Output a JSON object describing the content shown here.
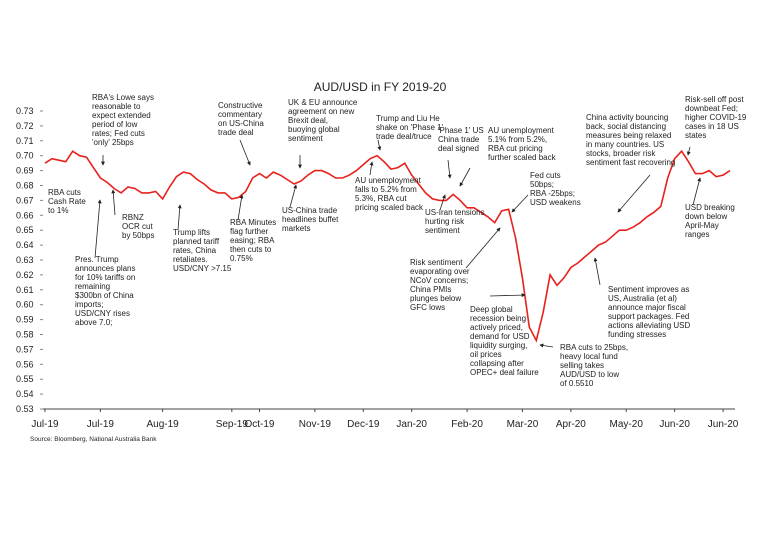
{
  "chart_data": {
    "type": "line",
    "title": "AUD/USD in FY 2019-20",
    "source": "Source: Bloomberg, National Australia Bank",
    "categories": [
      "Jul-19",
      null,
      null,
      null,
      null,
      null,
      null,
      null,
      "Jul-19",
      null,
      null,
      null,
      null,
      null,
      null,
      null,
      null,
      "Aug-19",
      null,
      null,
      null,
      null,
      null,
      null,
      null,
      null,
      null,
      "Sep-19",
      null,
      null,
      null,
      "Oct-19",
      null,
      null,
      null,
      null,
      null,
      null,
      null,
      "Nov-19",
      null,
      null,
      null,
      null,
      null,
      null,
      "Dec-19",
      null,
      null,
      null,
      null,
      null,
      null,
      "Jan-20",
      null,
      null,
      null,
      null,
      null,
      null,
      null,
      "Feb-20",
      null,
      null,
      null,
      null,
      null,
      null,
      null,
      "Mar-20",
      null,
      null,
      null,
      null,
      null,
      null,
      "Apr-20",
      null,
      null,
      null,
      null,
      null,
      null,
      null,
      "May-20",
      null,
      null,
      null,
      null,
      null,
      null,
      "Jun-20",
      null,
      null,
      null,
      null,
      null,
      null,
      "Jun-20",
      null
    ],
    "series": [
      {
        "name": "AUD/USD",
        "color": "#e8211d",
        "values": [
          0.695,
          0.698,
          0.697,
          0.696,
          0.703,
          0.7,
          0.699,
          0.692,
          0.685,
          0.682,
          0.678,
          0.675,
          0.679,
          0.678,
          0.675,
          0.675,
          0.676,
          0.671,
          0.679,
          0.686,
          0.689,
          0.688,
          0.684,
          0.681,
          0.677,
          0.675,
          0.675,
          0.671,
          0.672,
          0.676,
          0.685,
          0.688,
          0.685,
          0.689,
          0.687,
          0.684,
          0.681,
          0.683,
          0.687,
          0.69,
          0.69,
          0.688,
          0.685,
          0.685,
          0.687,
          0.69,
          0.694,
          0.698,
          0.7,
          0.696,
          0.691,
          0.692,
          0.695,
          0.687,
          0.681,
          0.675,
          0.671,
          0.67,
          0.67,
          0.674,
          0.67,
          0.665,
          0.665,
          0.662,
          0.659,
          0.655,
          0.663,
          0.664,
          0.645,
          0.618,
          0.585,
          0.576,
          0.595,
          0.62,
          0.613,
          0.618,
          0.625,
          0.628,
          0.632,
          0.636,
          0.64,
          0.642,
          0.646,
          0.65,
          0.65,
          0.652,
          0.655,
          0.659,
          0.662,
          0.666,
          0.685,
          0.698,
          0.703,
          0.696,
          0.688,
          0.688,
          0.69,
          0.686,
          0.687,
          0.69
        ]
      }
    ],
    "ylim": [
      0.53,
      0.73
    ],
    "yticks": [
      0.73,
      0.72,
      0.71,
      {
        "value": 0.7,
        "label": "0.70"
      },
      0.69,
      0.68,
      0.67,
      0.66,
      0.65,
      0.64,
      0.63,
      0.62,
      0.61,
      {
        "value": 0.6,
        "label": "0.60"
      },
      0.59,
      0.58,
      0.57,
      0.56,
      0.55,
      0.54,
      0.53
    ],
    "annotations": [
      [
        "RBA cuts",
        "Cash Rate",
        "to 1%"
      ],
      [
        "RBA's Lowe says",
        "reasonable to",
        "expect extended",
        "period of low",
        "rates; Fed cuts",
        "'only' 25bps"
      ],
      [
        "RBNZ",
        "OCR cut",
        "by 50bps"
      ],
      [
        "Pres. Trump",
        "announces plans",
        "for 10% tariffs on",
        "remaining",
        "$300bn of China",
        "imports;",
        "USD/CNY rises",
        "above 7.0;"
      ],
      [
        "Trump lifts",
        "planned tariff",
        "rates, China",
        "retaliates.",
        "USD/CNY >7.15"
      ],
      [
        "RBA Minutes",
        "flag further",
        "easing; RBA",
        "then cuts to",
        "0.75%"
      ],
      [
        "Constructive",
        "commentary",
        "on US-China",
        "trade deal"
      ],
      [
        "UK & EU announce",
        "agreement on new",
        "Brexit deal,",
        "buoying global",
        "sentiment"
      ],
      [
        "US-China trade",
        "headlines buffet",
        "markets"
      ],
      [
        "Trump and Liu He",
        "shake on 'Phase 1'",
        "trade deal/truce"
      ],
      [
        "AU unemployment",
        "falls to 5.2% from",
        "5.3%, RBA cut",
        "pricing scaled back"
      ],
      [
        "'Phase 1' US",
        "China trade",
        "deal signed"
      ],
      [
        "AU unemployment",
        "5.1% from 5.2%,",
        "RBA cut pricing",
        "further scaled back"
      ],
      [
        "US-Iran tensions",
        "hurting risk",
        "sentiment"
      ],
      [
        "Fed cuts",
        "50bps;",
        "RBA -25bps;",
        "USD weakens"
      ],
      [
        "Risk sentiment",
        "evaporating over",
        "NCoV concerns;",
        "China PMIs",
        "plunges below",
        "GFC lows"
      ],
      [
        "Deep global",
        "recession being",
        "actively priced,",
        "demand for USD",
        "liquidity surging,",
        "oil prices",
        "collapsing after",
        "OPEC+ deal failure"
      ],
      [
        "RBA cuts to 25bps,",
        "heavy local fund",
        "selling takes",
        "AUD/USD to low",
        "of 0.5510"
      ],
      [
        "China activity bouncing",
        "back, social distancing",
        "measures being relaxed",
        "in many countries. US",
        "stocks, broader risk",
        "sentiment fast recovering"
      ],
      [
        "Sentiment improves as",
        "US, Australia (et al)",
        "announce major fiscal",
        "support packages. Fed",
        "actions alleviating USD",
        "funding stresses"
      ],
      [
        "Risk-sell off post",
        "downbeat Fed;",
        "higher COVID-19",
        "cases in 18 US",
        "states"
      ],
      [
        "USD breaking",
        "down below",
        "April-May",
        "ranges"
      ]
    ]
  }
}
